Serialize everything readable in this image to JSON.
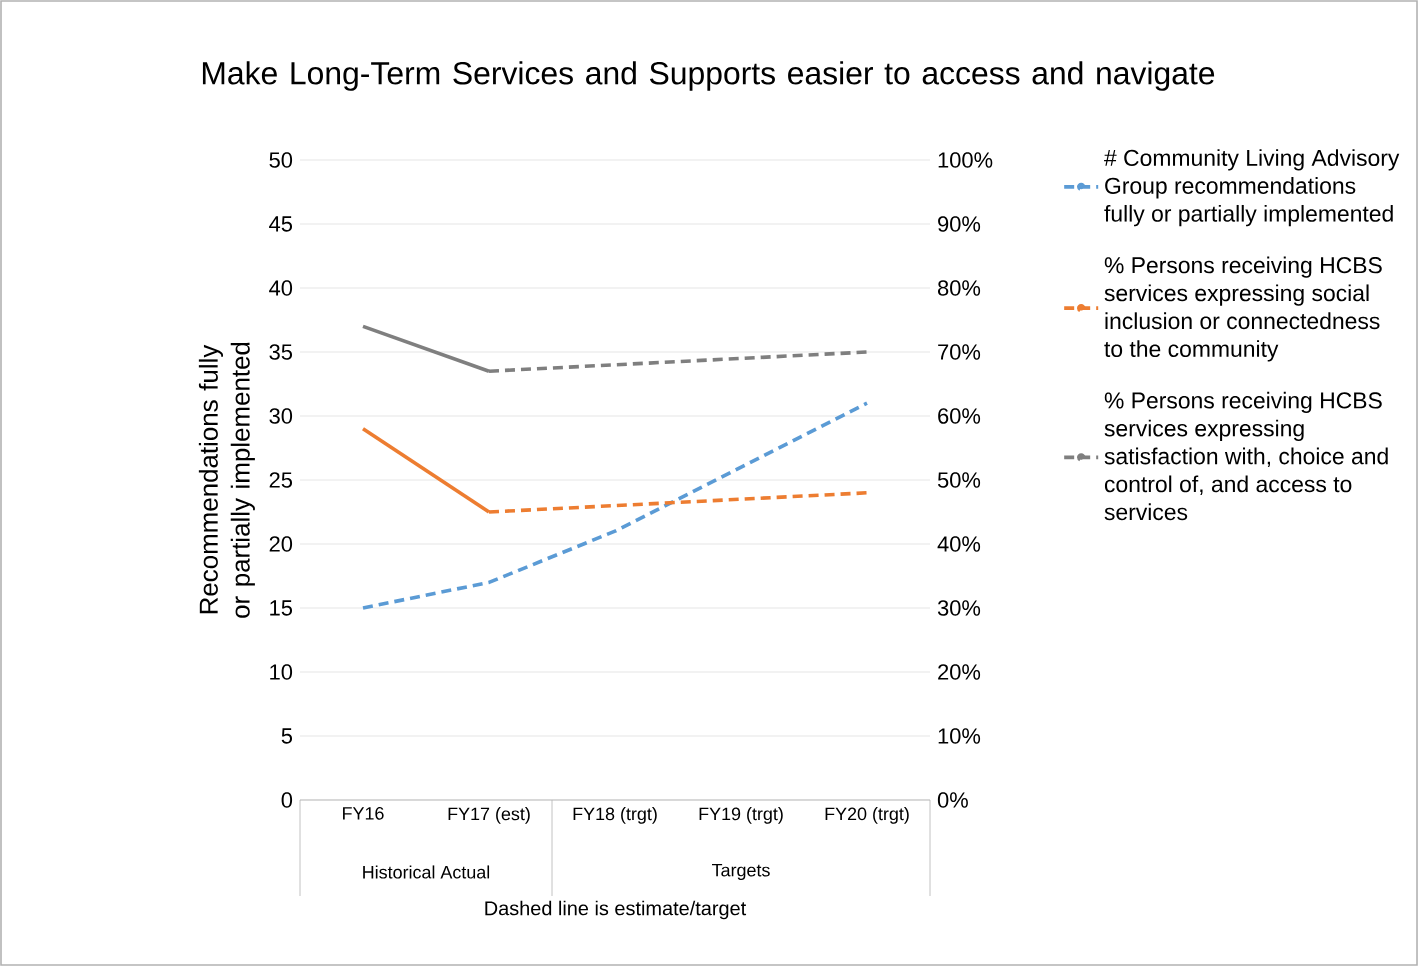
{
  "chart_data": {
    "type": "line",
    "title": "Make Long-Term Services and Supports easier to access and navigate",
    "ylabel": "Recommendations fully or partially implemented",
    "categories": [
      "FY16",
      "FY17 (est)",
      "FY18 (trgt)",
      "FY19 (trgt)",
      "FY20 (trgt)"
    ],
    "series": [
      {
        "name": "# Community Living Advisory Group recommendations fully or partially implemented",
        "color": "#5b9bd5",
        "values": [
          15,
          17,
          21,
          26,
          31
        ],
        "line_style": "dashed"
      },
      {
        "color": "#ed7d31",
        "axis": "y2",
        "values": [
          58,
          45,
          null,
          null,
          null
        ],
        "line_style": "solid"
      },
      {
        "name": "% Persons receiving HCBS services expressing social inclusion or connectedness to the community",
        "color": "#ed7d31",
        "axis": "y2",
        "values": [
          null,
          45,
          46,
          47,
          48
        ],
        "line_style": "dashed"
      },
      {
        "color": "#7f7f7f",
        "axis": "y2",
        "values": [
          74,
          67,
          null,
          null,
          null
        ],
        "line_style": "solid"
      },
      {
        "name": "% Persons receiving HCBS services expressing satisfaction with, choice and control of, and access to services",
        "color": "#7f7f7f",
        "axis": "y2",
        "values": [
          null,
          67,
          68,
          69,
          70
        ],
        "line_style": "dashed"
      }
    ],
    "ylim": [
      0,
      50
    ],
    "yticks": [
      0,
      5,
      10,
      15,
      20,
      25,
      30,
      35,
      40,
      45,
      50
    ],
    "y2lim": [
      0,
      100
    ],
    "y2ticks": [
      {
        "value": 0,
        "label": "0%"
      },
      {
        "value": 10,
        "label": "10%"
      },
      {
        "value": 20,
        "label": "20%"
      },
      {
        "value": 30,
        "label": "30%"
      },
      {
        "value": 40,
        "label": "40%"
      },
      {
        "value": 50,
        "label": "50%"
      },
      {
        "value": 60,
        "label": "60%"
      },
      {
        "value": 70,
        "label": "70%"
      },
      {
        "value": 80,
        "label": "80%"
      },
      {
        "value": 90,
        "label": "90%"
      },
      {
        "value": 100,
        "label": "100%"
      }
    ],
    "grid": "y",
    "legend": "right",
    "annotations": [
      "Historical Actual",
      "Targets",
      "Dashed line is estimate/target"
    ]
  }
}
